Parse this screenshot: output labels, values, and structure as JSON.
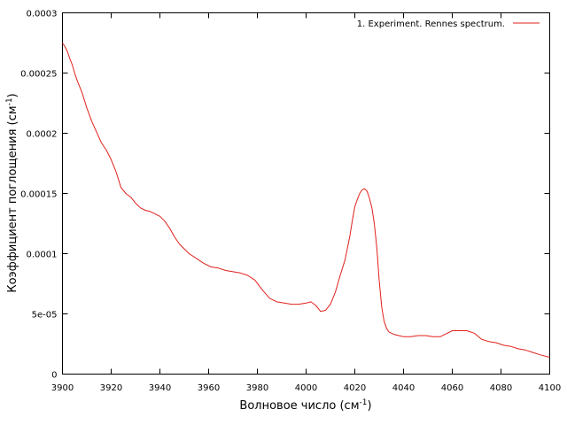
{
  "chart_data": {
    "type": "line",
    "xlabel_main": "Волновое число (см",
    "xlabel_sup": "-1",
    "xlabel_close": ")",
    "ylabel_main": "Коэффициент поглощения (см",
    "ylabel_sup": "-1",
    "ylabel_close": ")",
    "xlim": [
      3900,
      4100
    ],
    "ylim": [
      0,
      0.0003
    ],
    "x_ticks": [
      3900,
      3920,
      3940,
      3960,
      3980,
      4000,
      4020,
      4040,
      4060,
      4080,
      4100
    ],
    "x_tick_labels": [
      "3900",
      "3920",
      "3940",
      "3960",
      "3980",
      "4000",
      "4020",
      "4040",
      "4060",
      "4080",
      "4100"
    ],
    "y_ticks": [
      0,
      5e-05,
      0.0001,
      0.00015,
      0.0002,
      0.00025,
      0.0003
    ],
    "y_tick_labels": [
      "0",
      "5e-05",
      "0.0001",
      "0.00015",
      "0.0002",
      "0.00025",
      "0.0003"
    ],
    "grid": false,
    "legend_position": "top-right",
    "series": [
      {
        "name": "1. Experiment. Rennes spectrum.",
        "color": "#e0201b",
        "x": [
          3900,
          3901,
          3902,
          3903,
          3904,
          3905,
          3906,
          3908,
          3910,
          3912,
          3914,
          3916,
          3918,
          3920,
          3922,
          3924,
          3926,
          3928,
          3930,
          3932,
          3934,
          3936,
          3938,
          3940,
          3942,
          3944,
          3946,
          3948,
          3950,
          3952,
          3955,
          3958,
          3961,
          3964,
          3967,
          3970,
          3973,
          3976,
          3979,
          3982,
          3985,
          3988,
          3991,
          3994,
          3997,
          4000,
          4002,
          4004,
          4006,
          4008,
          4010,
          4012,
          4014,
          4016,
          4018,
          4019,
          4020,
          4021,
          4022,
          4023,
          4024,
          4025,
          4026,
          4027,
          4028,
          4029,
          4030,
          4031,
          4032,
          4033,
          4034,
          4036,
          4038,
          4040,
          4043,
          4046,
          4049,
          4052,
          4055,
          4058,
          4060,
          4063,
          4066,
          4069,
          4072,
          4075,
          4078,
          4081,
          4084,
          4087,
          4090,
          4093,
          4096,
          4100
        ],
        "y": [
          0.000275,
          0.000272,
          0.000268,
          0.000262,
          0.000257,
          0.00025,
          0.000244,
          0.000234,
          0.000221,
          0.00021,
          0.000201,
          0.000192,
          0.000186,
          0.000178,
          0.000168,
          0.000155,
          0.00015,
          0.000147,
          0.000142,
          0.000138,
          0.000136,
          0.000135,
          0.000133,
          0.000131,
          0.000127,
          0.000121,
          0.000114,
          0.000108,
          0.000104,
          0.0001,
          9.6e-05,
          9.2e-05,
          8.9e-05,
          8.8e-05,
          8.6e-05,
          8.5e-05,
          8.4e-05,
          8.2e-05,
          7.8e-05,
          7e-05,
          6.3e-05,
          6e-05,
          5.9e-05,
          5.8e-05,
          5.8e-05,
          5.9e-05,
          6e-05,
          5.7e-05,
          5.2e-05,
          5.3e-05,
          5.8e-05,
          6.8e-05,
          8.2e-05,
          9.5e-05,
          0.000115,
          0.000128,
          0.000139,
          0.000145,
          0.00015,
          0.000153,
          0.000154,
          0.000152,
          0.000146,
          0.000138,
          0.000125,
          0.000105,
          7.8e-05,
          5.6e-05,
          4.4e-05,
          3.8e-05,
          3.5e-05,
          3.3e-05,
          3.2e-05,
          3.1e-05,
          3.1e-05,
          3.2e-05,
          3.2e-05,
          3.1e-05,
          3.1e-05,
          3.4e-05,
          3.6e-05,
          3.6e-05,
          3.6e-05,
          3.4e-05,
          2.9e-05,
          2.7e-05,
          2.6e-05,
          2.4e-05,
          2.3e-05,
          2.1e-05,
          2e-05,
          1.8e-05,
          1.6e-05,
          1.4e-05
        ]
      }
    ]
  }
}
